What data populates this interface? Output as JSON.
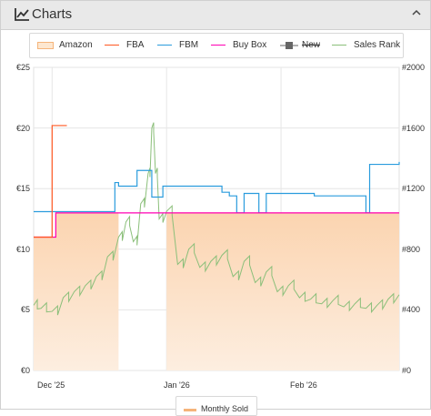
{
  "header": {
    "title": "Charts",
    "icon": "line-chart-icon",
    "collapse_icon": "chevron-up-icon"
  },
  "colors": {
    "amazon": "#f5b47a",
    "fba": "#ff5722",
    "fbm": "#2a9cdd",
    "buybox": "#ff00b4",
    "new": "#888888",
    "sales_rank": "#8bbf7a"
  },
  "chart_data": {
    "type": "line",
    "legend": [
      {
        "name": "Amazon",
        "style": "area",
        "color": "#f5b47a"
      },
      {
        "name": "FBA",
        "style": "line",
        "color": "#ff5722"
      },
      {
        "name": "FBM",
        "style": "line",
        "color": "#2a9cdd"
      },
      {
        "name": "Buy Box",
        "style": "line",
        "color": "#ff00b4"
      },
      {
        "name": "New",
        "style": "square-line",
        "color": "#888888",
        "hidden": true
      },
      {
        "name": "Sales Rank",
        "style": "line",
        "color": "#8bbf7a"
      }
    ],
    "x_ticks": [
      "Dec '25",
      "Jan '26",
      "Feb '26"
    ],
    "y_left": {
      "ticks": [
        "€0",
        "€5",
        "€10",
        "€15",
        "€20",
        "€25"
      ],
      "min": 0,
      "max": 25
    },
    "y_right": {
      "ticks": [
        "#0",
        "#400",
        "#800",
        "#1200",
        "#1600",
        "#2000"
      ],
      "min": 0,
      "max": 2000
    },
    "x_range": [
      "2025-11-26",
      "2026-03-05"
    ],
    "grid": true,
    "series": [
      {
        "name": "Amazon",
        "axis": "left",
        "x": [
          "2025-11-26",
          "2025-12-01",
          "2025-12-02",
          "2025-12-19",
          "2025-12-26",
          "2025-12-31",
          "2026-01-01",
          "2026-03-05"
        ],
        "y": [
          11,
          11,
          13,
          13,
          null,
          null,
          13,
          13
        ]
      },
      {
        "name": "FBA",
        "axis": "left",
        "x": [
          "2025-11-26",
          "2025-12-01",
          "2025-12-05"
        ],
        "y": [
          11,
          20.2,
          20.2
        ]
      },
      {
        "name": "FBM",
        "axis": "left",
        "x": [
          "2025-11-26",
          "2025-12-04",
          "2025-12-18",
          "2025-12-19",
          "2025-12-24",
          "2025-12-28",
          "2025-12-31",
          "2026-01-10",
          "2026-01-16",
          "2026-01-18",
          "2026-01-20",
          "2026-01-22",
          "2026-01-26",
          "2026-01-28",
          "2026-02-01",
          "2026-02-03",
          "2026-02-10",
          "2026-02-19",
          "2026-02-24",
          "2026-02-25",
          "2026-02-26",
          "2026-03-05"
        ],
        "y": [
          13.1,
          13.1,
          15.5,
          15.2,
          16.5,
          14.3,
          15.2,
          15.2,
          14.7,
          14.4,
          13,
          14.6,
          13,
          14.6,
          14.6,
          14.6,
          14.4,
          14.4,
          13,
          17,
          17,
          17.2
        ]
      },
      {
        "name": "Buy Box",
        "axis": "left",
        "x": [
          "2025-11-26",
          "2025-12-01",
          "2025-12-02",
          "2026-02-27",
          "2026-03-05"
        ],
        "y": [
          11,
          11,
          13,
          13,
          13
        ]
      },
      {
        "name": "Sales Rank",
        "axis": "right",
        "x": [
          "2025-11-26",
          "2025-11-28",
          "2025-12-01",
          "2025-12-04",
          "2025-12-07",
          "2025-12-10",
          "2025-12-13",
          "2025-12-16",
          "2025-12-19",
          "2025-12-21",
          "2025-12-23",
          "2025-12-25",
          "2025-12-27",
          "2025-12-28",
          "2025-12-29",
          "2025-12-30",
          "2026-01-01",
          "2026-01-04",
          "2026-01-07",
          "2026-01-10",
          "2026-01-13",
          "2026-01-16",
          "2026-01-19",
          "2026-01-22",
          "2026-01-25",
          "2026-01-28",
          "2026-01-31",
          "2026-02-03",
          "2026-02-06",
          "2026-02-09",
          "2026-02-12",
          "2026-02-15",
          "2026-02-18",
          "2026-02-21",
          "2026-02-24",
          "2026-02-27",
          "2026-03-02",
          "2026-03-05"
        ],
        "y": [
          430,
          410,
          390,
          480,
          520,
          560,
          620,
          750,
          880,
          980,
          850,
          1100,
          1300,
          1600,
          1300,
          1000,
          1050,
          700,
          800,
          680,
          720,
          760,
          620,
          720,
          580,
          650,
          520,
          560,
          480,
          470,
          440,
          460,
          420,
          440,
          410,
          430,
          470,
          500
        ]
      }
    ]
  },
  "bottom_legend": {
    "label": "Monthly Sold"
  }
}
